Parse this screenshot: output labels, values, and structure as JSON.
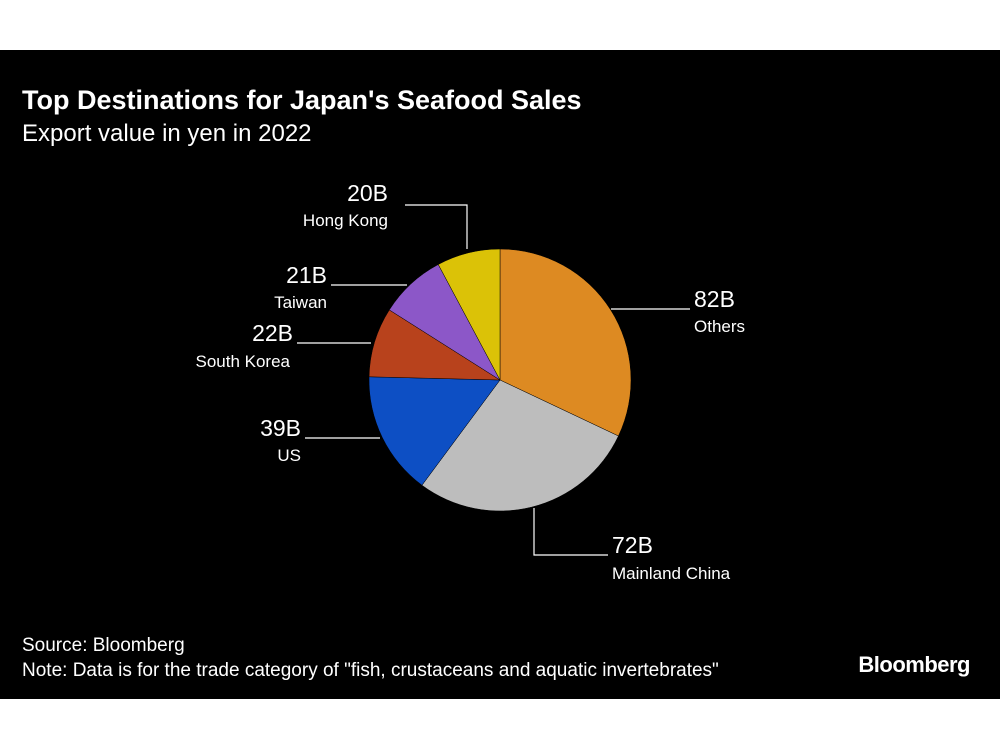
{
  "title": "Top Destinations for Japan's Seafood Sales",
  "subtitle": "Export value in yen in 2022",
  "chart_data": {
    "type": "pie",
    "unit": "B",
    "slices": [
      {
        "label": "Others",
        "value": 82,
        "value_label": "82B",
        "color": "#dd8a22"
      },
      {
        "label": "Mainland China",
        "value": 72,
        "value_label": "72B",
        "color": "#bdbdbd"
      },
      {
        "label": "US",
        "value": 39,
        "value_label": "39B",
        "color": "#0d4fc4"
      },
      {
        "label": "South Korea",
        "value": 22,
        "value_label": "22B",
        "color": "#b8421c"
      },
      {
        "label": "Taiwan",
        "value": 21,
        "value_label": "21B",
        "color": "#8c57c8"
      },
      {
        "label": "Hong Kong",
        "value": 20,
        "value_label": "20B",
        "color": "#dbc207"
      }
    ]
  },
  "footer": {
    "source": "Source: Bloomberg",
    "note": "Note: Data is for the trade category of \"fish, crustaceans and aquatic invertebrates\""
  },
  "brand": "Bloomberg"
}
